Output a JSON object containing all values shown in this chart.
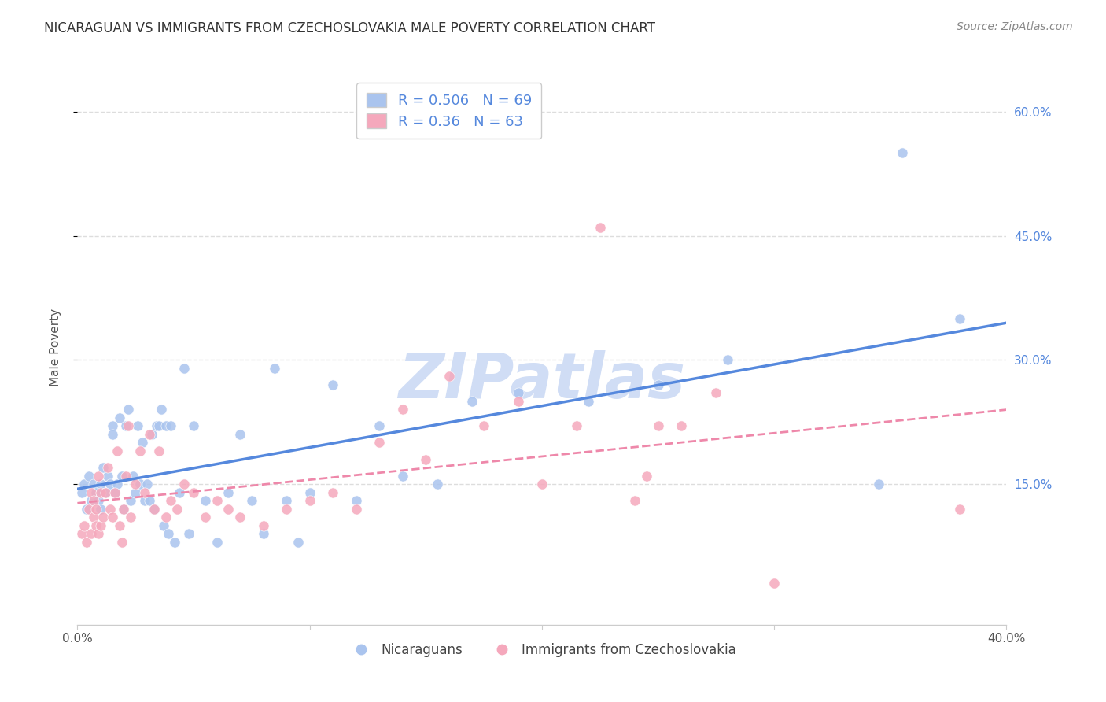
{
  "title": "NICARAGUAN VS IMMIGRANTS FROM CZECHOSLOVAKIA MALE POVERTY CORRELATION CHART",
  "source": "Source: ZipAtlas.com",
  "ylabel": "Male Poverty",
  "ytick_labels": [
    "15.0%",
    "30.0%",
    "45.0%",
    "60.0%"
  ],
  "ytick_values": [
    0.15,
    0.3,
    0.45,
    0.6
  ],
  "xlim": [
    0.0,
    0.4
  ],
  "ylim": [
    -0.02,
    0.65
  ],
  "legend_label_blue": "Nicaraguans",
  "legend_label_pink": "Immigrants from Czechoslovakia",
  "R_blue": 0.506,
  "N_blue": 69,
  "R_pink": 0.36,
  "N_pink": 63,
  "blue_scatter_color": "#aac4ee",
  "pink_scatter_color": "#f5a8bc",
  "blue_line_color": "#5588dd",
  "pink_line_color": "#ee88aa",
  "watermark_color": "#d0ddf5",
  "background_color": "#ffffff",
  "grid_color": "#dddddd",
  "title_color": "#333333",
  "blue_x": [
    0.002,
    0.003,
    0.004,
    0.005,
    0.006,
    0.007,
    0.008,
    0.009,
    0.01,
    0.01,
    0.011,
    0.012,
    0.013,
    0.014,
    0.015,
    0.015,
    0.016,
    0.017,
    0.018,
    0.019,
    0.02,
    0.021,
    0.022,
    0.023,
    0.024,
    0.025,
    0.026,
    0.027,
    0.028,
    0.029,
    0.03,
    0.031,
    0.032,
    0.033,
    0.034,
    0.035,
    0.036,
    0.037,
    0.038,
    0.039,
    0.04,
    0.042,
    0.044,
    0.046,
    0.048,
    0.05,
    0.055,
    0.06,
    0.065,
    0.07,
    0.075,
    0.08,
    0.085,
    0.09,
    0.095,
    0.1,
    0.11,
    0.12,
    0.13,
    0.14,
    0.155,
    0.17,
    0.19,
    0.22,
    0.25,
    0.28,
    0.345,
    0.355,
    0.38
  ],
  "blue_y": [
    0.14,
    0.15,
    0.12,
    0.16,
    0.13,
    0.15,
    0.14,
    0.13,
    0.15,
    0.12,
    0.17,
    0.14,
    0.16,
    0.15,
    0.22,
    0.21,
    0.14,
    0.15,
    0.23,
    0.16,
    0.12,
    0.22,
    0.24,
    0.13,
    0.16,
    0.14,
    0.22,
    0.15,
    0.2,
    0.13,
    0.15,
    0.13,
    0.21,
    0.12,
    0.22,
    0.22,
    0.24,
    0.1,
    0.22,
    0.09,
    0.22,
    0.08,
    0.14,
    0.29,
    0.09,
    0.22,
    0.13,
    0.08,
    0.14,
    0.21,
    0.13,
    0.09,
    0.29,
    0.13,
    0.08,
    0.14,
    0.27,
    0.13,
    0.22,
    0.16,
    0.15,
    0.25,
    0.26,
    0.25,
    0.27,
    0.3,
    0.15,
    0.55,
    0.35
  ],
  "pink_x": [
    0.002,
    0.003,
    0.004,
    0.005,
    0.006,
    0.006,
    0.007,
    0.007,
    0.008,
    0.008,
    0.009,
    0.009,
    0.01,
    0.01,
    0.011,
    0.012,
    0.013,
    0.014,
    0.015,
    0.016,
    0.017,
    0.018,
    0.019,
    0.02,
    0.021,
    0.022,
    0.023,
    0.025,
    0.027,
    0.029,
    0.031,
    0.033,
    0.035,
    0.038,
    0.04,
    0.043,
    0.046,
    0.05,
    0.055,
    0.06,
    0.065,
    0.07,
    0.08,
    0.09,
    0.1,
    0.11,
    0.12,
    0.13,
    0.14,
    0.15,
    0.16,
    0.175,
    0.19,
    0.2,
    0.215,
    0.225,
    0.24,
    0.245,
    0.25,
    0.26,
    0.275,
    0.3,
    0.38
  ],
  "pink_y": [
    0.09,
    0.1,
    0.08,
    0.12,
    0.09,
    0.14,
    0.11,
    0.13,
    0.1,
    0.12,
    0.09,
    0.16,
    0.1,
    0.14,
    0.11,
    0.14,
    0.17,
    0.12,
    0.11,
    0.14,
    0.19,
    0.1,
    0.08,
    0.12,
    0.16,
    0.22,
    0.11,
    0.15,
    0.19,
    0.14,
    0.21,
    0.12,
    0.19,
    0.11,
    0.13,
    0.12,
    0.15,
    0.14,
    0.11,
    0.13,
    0.12,
    0.11,
    0.1,
    0.12,
    0.13,
    0.14,
    0.12,
    0.2,
    0.24,
    0.18,
    0.28,
    0.22,
    0.25,
    0.15,
    0.22,
    0.46,
    0.13,
    0.16,
    0.22,
    0.22,
    0.26,
    0.03,
    0.12
  ]
}
